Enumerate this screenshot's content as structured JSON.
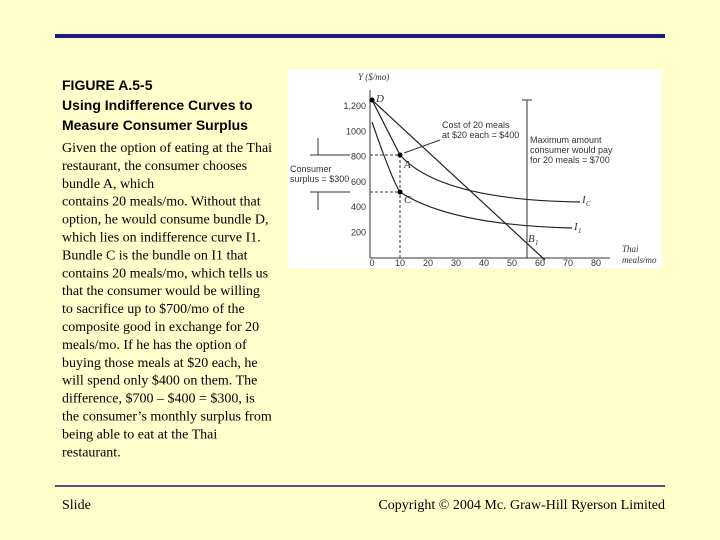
{
  "header": {
    "figure_label": "FIGURE A.5-5",
    "title_lines": [
      "Using Indifference Curves to",
      "Measure Consumer Surplus"
    ]
  },
  "body_lines": [
    "Given the option of eating at the Thai",
    "restaurant, the consumer chooses",
    "bundle A, which",
    "contains 20 meals/mo. Without that",
    "option, he would consume bundle D,",
    "which lies on indifference curve I1.",
    "Bundle C is the bundle on I1 that",
    "contains 20 meals/mo, which tells us",
    "that the consumer would be willing",
    "to sacrifice up to $700/mo of the",
    "composite good in exchange for 20",
    "meals/mo. If he has the option of",
    "buying those meals at $20 each, he",
    "will spend only $400 on them. The",
    "difference, $700 – $400 = $300, is",
    "the consumer’s monthly surplus from",
    "being able to eat at the Thai",
    "restaurant."
  ],
  "figure": {
    "y_axis_label": "Y ($/mo)",
    "x_axis_label_lines": [
      "Thai",
      "meals/mo"
    ],
    "y_ticks": [
      "1,200",
      "1000",
      "800",
      "600",
      "400",
      "200"
    ],
    "x_ticks": [
      "0",
      "10",
      "20",
      "30",
      "40",
      "50",
      "60",
      "70",
      "80"
    ],
    "point_labels": {
      "D": "D",
      "A": "A",
      "C": "C",
      "B1": "B",
      "B1_sub": "1",
      "Ic": "I",
      "Ic_sub": "C",
      "I1": "I",
      "I1_sub": "1"
    },
    "cost_note": [
      "Cost of 20 meals",
      "at $20 each = $400"
    ],
    "max_note": [
      "Maximum amount",
      "consumer would pay",
      "for 20 meals = $700"
    ],
    "surplus_note": [
      "Consumer",
      "surplus = $300"
    ]
  },
  "footer": {
    "left": "Slide",
    "right": "Copyright © 2004 Mc. Graw-Hill Ryerson Limited"
  }
}
